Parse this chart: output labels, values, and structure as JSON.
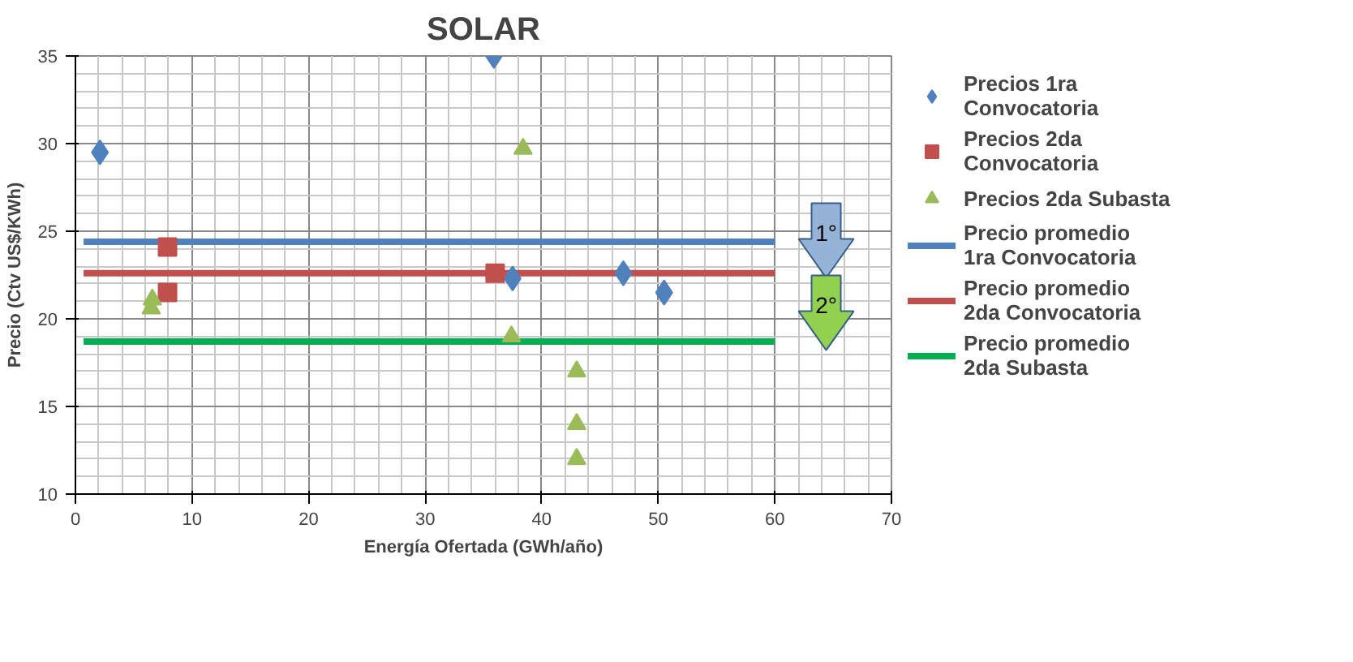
{
  "chart_data": {
    "type": "scatter",
    "title": "SOLAR",
    "xlabel": "Energía Ofertada (GWh/año)",
    "ylabel": "Precio (Ctv US$/KWh)",
    "xlim": [
      0,
      70
    ],
    "ylim": [
      10,
      35
    ],
    "xticks": [
      0,
      10,
      20,
      30,
      40,
      50,
      60,
      70
    ],
    "yticks": [
      10,
      15,
      20,
      25,
      30,
      35
    ],
    "grid": true,
    "legend": "right",
    "series": [
      {
        "name": "Precios 1ra Convocatoria",
        "marker": "diamond",
        "color": "#4f81bd",
        "x": [
          2.1,
          35.9,
          37.5,
          47,
          50.5
        ],
        "values": [
          29.5,
          35,
          22.3,
          22.6,
          21.5
        ]
      },
      {
        "name": "Precios 2da Convocatoria",
        "marker": "square",
        "color": "#c0504d",
        "x": [
          7.9,
          7.9,
          36
        ],
        "values": [
          24.1,
          21.5,
          22.6
        ]
      },
      {
        "name": "Precios 2da Subasta",
        "marker": "triangle",
        "color": "#9bbb59",
        "x": [
          6.5,
          6.6,
          38.4,
          37.4,
          43,
          43,
          43
        ],
        "values": [
          20.6,
          21.1,
          29.7,
          19.0,
          17,
          14,
          12
        ]
      },
      {
        "name": "Precio promedio 1ra Convocatoria",
        "type": "line",
        "color": "#4f81bd",
        "x": [
          0.7,
          60
        ],
        "values": [
          24.4,
          24.4
        ]
      },
      {
        "name": "Precio promedio 2da Convocatoria",
        "type": "line",
        "color": "#c0504d",
        "x": [
          0.7,
          60
        ],
        "values": [
          22.6,
          22.6
        ]
      },
      {
        "name": "Precio promedio 2da Subasta",
        "type": "line",
        "color": "#00b050",
        "x": [
          0.7,
          60
        ],
        "values": [
          18.7,
          18.7
        ]
      }
    ],
    "annotations": [
      "1°",
      "2°"
    ]
  }
}
